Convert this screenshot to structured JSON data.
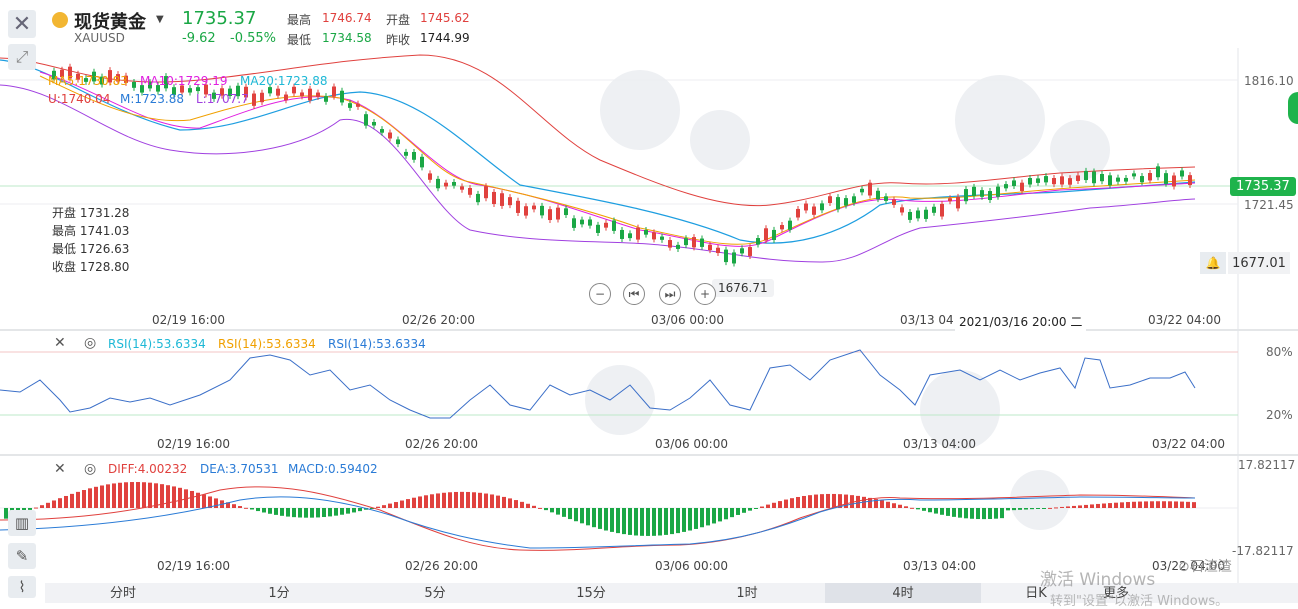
{
  "header": {
    "title": "现货黄金",
    "code": "XAUUSD",
    "price": "1735.37",
    "change": "-9.62",
    "change_pct": "-0.55%",
    "high_label": "最高",
    "high": "1746.74",
    "open_label": "开盘",
    "open": "1745.62",
    "low_label": "最低",
    "low": "1734.58",
    "prev_label": "昨收",
    "prev": "1744.99"
  },
  "main_chart": {
    "ma5": "MA5:1730.83",
    "ma10": "MA10:1729.19",
    "ma20": "MA20:1723.88",
    "boll_u": "U:1740.04",
    "boll_m": "M:1723.88",
    "boll_l": "L:1707.7",
    "ohlc": {
      "open": "开盘 1731.28",
      "high": "最高 1741.03",
      "low": "最低 1726.63",
      "close": "收盘 1728.80"
    },
    "axis_top": "1816.10",
    "axis_current": "1735.37",
    "axis_mid": "1721.45",
    "low_marker": "1676.71",
    "alert_value": "1677.01",
    "crosshair_date": "2021/03/16 20:00 二",
    "x_labels": [
      "02/19 16:00",
      "02/26 20:00",
      "03/06 00:00",
      "03/13 04",
      "03/22 04:00"
    ],
    "colors": {
      "up": "#e0413e",
      "down": "#1aa745",
      "ma5": "#f0a000",
      "ma10": "#e020e0",
      "ma20": "#1e9ee0",
      "boll_u": "#e0413e",
      "boll_m": "#2a7bd6",
      "boll_l": "#a040e0"
    }
  },
  "rsi_pane": {
    "rsi1": "RSI(14):53.6334",
    "rsi2": "RSI(14):53.6334",
    "rsi3": "RSI(14):53.6334",
    "level_high": "80%",
    "level_low": "20%",
    "x_labels": [
      "02/19 16:00",
      "02/26 20:00",
      "03/06 00:00",
      "03/13 04:00",
      "03/22 04:00"
    ]
  },
  "macd_pane": {
    "diff": "DIFF:4.00232",
    "dea": "DEA:3.70531",
    "macd": "MACD:0.59402",
    "axis_top": "17.82117",
    "axis_bottom": "-17.82117",
    "x_labels": [
      "02/19 16:00",
      "02/26 20:00",
      "03/06 00:00",
      "03/13 04:00",
      "03/22 04:00"
    ]
  },
  "tabs": [
    "分时",
    "1分",
    "5分",
    "15分",
    "1时",
    "4时",
    "日K",
    "更多"
  ],
  "active_tab": "4时",
  "overlay": {
    "watermark_line1": "激活 Windows",
    "watermark_line2": "转到\"设置\"以激活 Windows。",
    "wechat": "⊙石渣渣"
  }
}
